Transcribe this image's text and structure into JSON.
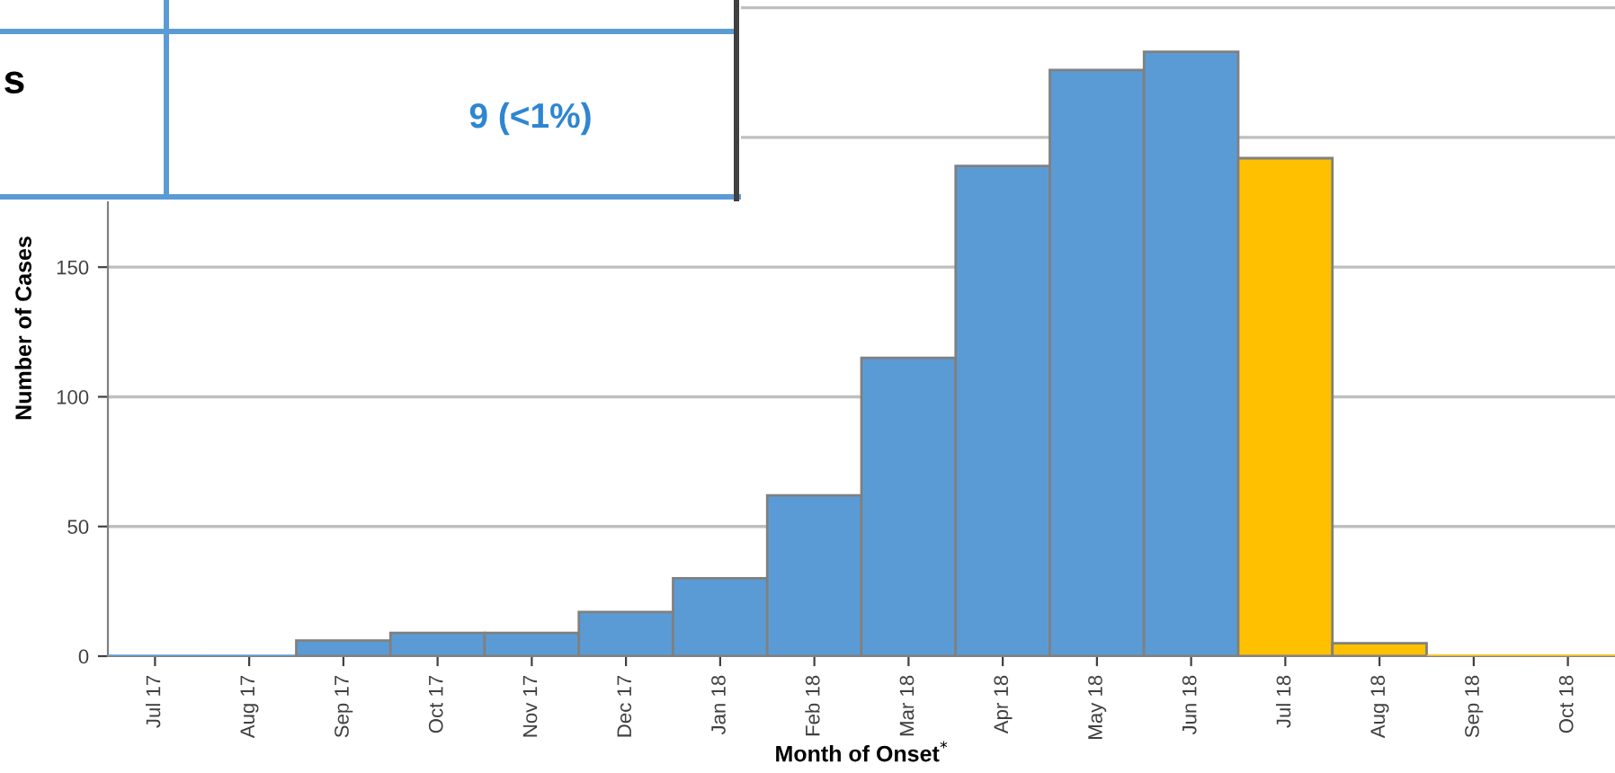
{
  "chart_data": {
    "type": "bar",
    "categories": [
      "Jul 17",
      "Aug 17",
      "Sep 17",
      "Oct 17",
      "Nov 17",
      "Dec 17",
      "Jan 18",
      "Feb 18",
      "Mar 18",
      "Apr 18",
      "May 18",
      "Jun 18",
      "Jul 18",
      "Aug 18",
      "Sep 18",
      "Oct 18"
    ],
    "values": [
      0,
      0,
      6,
      9,
      9,
      17,
      30,
      62,
      115,
      189,
      226,
      233,
      192,
      5,
      0,
      0
    ],
    "colors": [
      "#5b9bd5",
      "#5b9bd5",
      "#5b9bd5",
      "#5b9bd5",
      "#5b9bd5",
      "#5b9bd5",
      "#5b9bd5",
      "#5b9bd5",
      "#5b9bd5",
      "#5b9bd5",
      "#5b9bd5",
      "#5b9bd5",
      "#ffc000",
      "#ffc000",
      "#ffc000",
      "#ffc000"
    ],
    "xlabel": "Month of Onset$^{*}$",
    "ylabel": "Number of Cases",
    "ylim": [
      0,
      253
    ],
    "yticks": [
      0,
      50,
      100,
      150,
      {
        "value": 200,
        "label": null
      },
      {
        "value": 250,
        "label": null
      }
    ],
    "grid": "y",
    "annotations": [
      "s",
      "9 (<1%)"
    ]
  }
}
